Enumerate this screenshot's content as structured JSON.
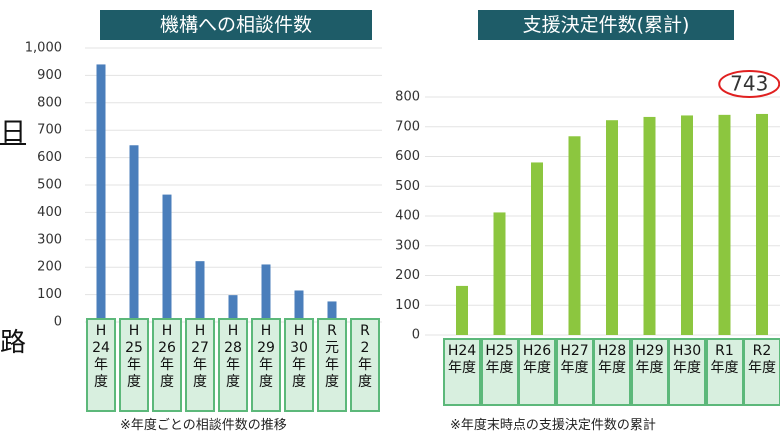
{
  "page_text": [
    "日",
    "路"
  ],
  "chart_data": [
    {
      "type": "bar",
      "title": "機構への相談件数",
      "categories": [
        "H24年度",
        "H25年度",
        "H26年度",
        "H27年度",
        "H28年度",
        "H29年度",
        "H30年度",
        "R元年度",
        "R2年度"
      ],
      "values": [
        940,
        645,
        465,
        222,
        98,
        210,
        115,
        75,
        3
      ],
      "color": "#4a7ebb",
      "ylim": [
        0,
        1000
      ],
      "yticks": [
        0,
        100,
        200,
        300,
        400,
        500,
        600,
        700,
        800,
        900,
        {
          "value": 1000,
          "label": "1,000"
        }
      ],
      "grid": true,
      "note": "※年度ごとの相談件数の推移"
    },
    {
      "type": "bar",
      "title": "支援決定件数(累計)",
      "categories": [
        "H24年度",
        "H25年度",
        "H26年度",
        "H27年度",
        "H28年度",
        "H29年度",
        "H30年度",
        "R1年度",
        "R2年度"
      ],
      "values": [
        165,
        412,
        580,
        668,
        722,
        733,
        738,
        740,
        743
      ],
      "color": "#8cc63f",
      "ylim": [
        0,
        800
      ],
      "yticks": [
        0,
        100,
        200,
        300,
        400,
        500,
        600,
        700,
        800
      ],
      "grid": true,
      "annotation": "743",
      "note": "※年度末時点の支援決定件数の累計"
    }
  ]
}
